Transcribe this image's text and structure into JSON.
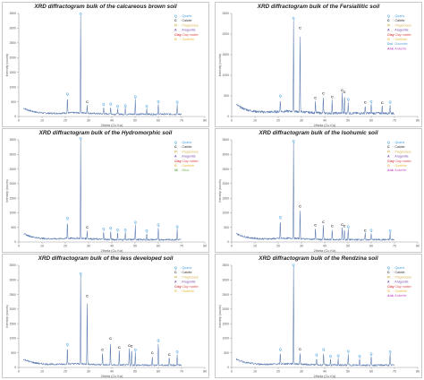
{
  "palette": {
    "trace": "#8fa6c7",
    "trace_dark": "#5b7bb0",
    "axis": "#9a9a9a",
    "title": "#222222",
    "Q": "#4aa3df",
    "C": "#333333",
    "Pl": "#d6b656",
    "A": "#7a4fb0",
    "Clay": "#e05353",
    "G": "#e6b83a",
    "Mi": "#7ab85a",
    "Dol": "#5fa8d3",
    "Ank": "#c458c4"
  },
  "chart_data": [
    {
      "type": "line",
      "title": "XRD diffractogram bulk of  the  calcareous brown soil",
      "xlabel": "2theta (Cu Kα)",
      "ylabel": "Intensity (counts)",
      "xlim": [
        0,
        80
      ],
      "ylim": [
        0,
        3500
      ],
      "xticks": [
        0,
        10,
        20,
        30,
        40,
        50,
        60,
        70,
        80
      ],
      "yticks": [
        0,
        500,
        1000,
        1500,
        2000,
        2500,
        3000,
        3500
      ],
      "legend_position": "top-right",
      "legend": [
        {
          "symbol": "Q",
          "label": "Quartz",
          "color": "#4aa3df"
        },
        {
          "symbol": "C",
          "label": "Calcite",
          "color": "#333333"
        },
        {
          "symbol": "Pl",
          "label": "Plagioclase",
          "color": "#d6b656"
        },
        {
          "symbol": "A",
          "label": "Aragonite",
          "color": "#7a4fb0"
        },
        {
          "symbol": "Clay",
          "label": "Clay matter",
          "color": "#e05353"
        },
        {
          "symbol": "G",
          "label": "Goethite",
          "color": "#e6b83a"
        }
      ],
      "peaks": [
        {
          "x": 20.9,
          "y": 560,
          "label": "Q"
        },
        {
          "x": 26.6,
          "y": 3280,
          "label": "Q"
        },
        {
          "x": 29.4,
          "y": 300,
          "label": "C"
        },
        {
          "x": 36.5,
          "y": 240,
          "label": "Q"
        },
        {
          "x": 39.5,
          "y": 260,
          "label": "Q"
        },
        {
          "x": 42.5,
          "y": 200,
          "label": "Q"
        },
        {
          "x": 45.8,
          "y": 210,
          "label": "Q"
        },
        {
          "x": 50.1,
          "y": 520,
          "label": "Q"
        },
        {
          "x": 55.0,
          "y": 200,
          "label": "Q"
        },
        {
          "x": 60.0,
          "y": 350,
          "label": "Q"
        },
        {
          "x": 68.1,
          "y": 330,
          "label": "Q"
        }
      ]
    },
    {
      "type": "line",
      "title": "XRD diffractogram bulk of  the  Fersiallitic soil",
      "xlabel": "2theta (Cu Kα)",
      "ylabel": "Intensity (counts)",
      "xlim": [
        0,
        80
      ],
      "ylim": [
        0,
        2500
      ],
      "xticks": [
        0,
        10,
        20,
        30,
        40,
        50,
        60,
        70,
        80
      ],
      "yticks": [
        0,
        500,
        1000,
        1500,
        2000,
        2500
      ],
      "legend_position": "top-right",
      "legend": [
        {
          "symbol": "Q",
          "label": "Quartz",
          "color": "#4aa3df"
        },
        {
          "symbol": "C",
          "label": "Calcite",
          "color": "#333333"
        },
        {
          "symbol": "Pl",
          "label": "Plagioclase",
          "color": "#d6b656"
        },
        {
          "symbol": "A",
          "label": "Aragonite",
          "color": "#7a4fb0"
        },
        {
          "symbol": "Clay",
          "label": "Clay matter",
          "color": "#e05353"
        },
        {
          "symbol": "G",
          "label": "Goethite",
          "color": "#e6b83a"
        },
        {
          "symbol": "Dol",
          "label": "Dolomite",
          "color": "#5fa8d3"
        },
        {
          "symbol": "Ank",
          "label": "Ankerite",
          "color": "#c458c4"
        }
      ],
      "peaks": [
        {
          "x": 20.9,
          "y": 320,
          "label": "Q"
        },
        {
          "x": 26.6,
          "y": 2200,
          "label": "Q"
        },
        {
          "x": 29.4,
          "y": 1970,
          "label": "C"
        },
        {
          "x": 36.0,
          "y": 300,
          "label": "C"
        },
        {
          "x": 39.4,
          "y": 420,
          "label": "C"
        },
        {
          "x": 43.2,
          "y": 330,
          "label": "C"
        },
        {
          "x": 47.5,
          "y": 500,
          "label": "C"
        },
        {
          "x": 48.5,
          "y": 450,
          "label": "C"
        },
        {
          "x": 50.1,
          "y": 280,
          "label": "Q"
        },
        {
          "x": 57.4,
          "y": 200,
          "label": "C"
        },
        {
          "x": 60.0,
          "y": 220,
          "label": "Q"
        },
        {
          "x": 64.7,
          "y": 190,
          "label": "C"
        },
        {
          "x": 68.1,
          "y": 210,
          "label": "Q"
        }
      ]
    },
    {
      "type": "line",
      "title": "XRD diffractogram bulk of  the  Hydromorphic soil",
      "xlabel": "2theta (Cu Kα)",
      "ylabel": "Intensity (counts)",
      "xlim": [
        0,
        80
      ],
      "ylim": [
        0,
        3500
      ],
      "xticks": [
        0,
        10,
        20,
        30,
        40,
        50,
        60,
        70,
        80
      ],
      "yticks": [
        0,
        500,
        1000,
        1500,
        2000,
        2500,
        3000,
        3500
      ],
      "legend_position": "top-right",
      "legend": [
        {
          "symbol": "Q",
          "label": "Quartz",
          "color": "#4aa3df"
        },
        {
          "symbol": "C",
          "label": "Calcite",
          "color": "#333333"
        },
        {
          "symbol": "Pl",
          "label": "Plagioclase",
          "color": "#d6b656"
        },
        {
          "symbol": "A",
          "label": "Aragonite",
          "color": "#7a4fb0"
        },
        {
          "symbol": "Clay",
          "label": "Clay matter",
          "color": "#e05353"
        },
        {
          "symbol": "G",
          "label": "Goethite",
          "color": "#e6b83a"
        },
        {
          "symbol": "Mi",
          "label": "Mica",
          "color": "#7ab85a"
        }
      ],
      "peaks": [
        {
          "x": 20.9,
          "y": 620,
          "label": "Q"
        },
        {
          "x": 26.6,
          "y": 3350,
          "label": "Q"
        },
        {
          "x": 29.4,
          "y": 300,
          "label": "C"
        },
        {
          "x": 36.5,
          "y": 280,
          "label": "Q"
        },
        {
          "x": 39.5,
          "y": 310,
          "label": "Q"
        },
        {
          "x": 42.5,
          "y": 250,
          "label": "Q"
        },
        {
          "x": 45.8,
          "y": 260,
          "label": "Q"
        },
        {
          "x": 50.1,
          "y": 520,
          "label": "Q"
        },
        {
          "x": 55.0,
          "y": 230,
          "label": "Q"
        },
        {
          "x": 60.0,
          "y": 420,
          "label": "Q"
        },
        {
          "x": 68.1,
          "y": 360,
          "label": "Q"
        }
      ]
    },
    {
      "type": "line",
      "title": "XRD diffractogram bulk of  the  Isohumic soil",
      "xlabel": "2theta (Cu Kα)",
      "ylabel": "Intensity (counts)",
      "xlim": [
        0,
        80
      ],
      "ylim": [
        0,
        3500
      ],
      "xticks": [
        0,
        10,
        20,
        30,
        40,
        50,
        60,
        70,
        80
      ],
      "yticks": [
        0,
        500,
        1000,
        1500,
        2000,
        2500,
        3000,
        3500
      ],
      "legend_position": "top-right",
      "legend": [
        {
          "symbol": "Q",
          "label": "Quartz",
          "color": "#4aa3df"
        },
        {
          "symbol": "C",
          "label": "Calcite",
          "color": "#333333"
        },
        {
          "symbol": "Pl",
          "label": "Plagioclase",
          "color": "#d6b656"
        },
        {
          "symbol": "A",
          "label": "Aragonite",
          "color": "#7a4fb0"
        },
        {
          "symbol": "Clay",
          "label": "Clay matter",
          "color": "#e05353"
        },
        {
          "symbol": "G",
          "label": "Goethite",
          "color": "#e6b83a"
        },
        {
          "symbol": "Ank",
          "label": "Ankerite",
          "color": "#c458c4"
        }
      ],
      "peaks": [
        {
          "x": 20.9,
          "y": 650,
          "label": "Q"
        },
        {
          "x": 26.6,
          "y": 3250,
          "label": "Q"
        },
        {
          "x": 29.4,
          "y": 1020,
          "label": "C"
        },
        {
          "x": 36.0,
          "y": 400,
          "label": "C"
        },
        {
          "x": 39.4,
          "y": 520,
          "label": "C"
        },
        {
          "x": 43.2,
          "y": 380,
          "label": "C"
        },
        {
          "x": 47.5,
          "y": 420,
          "label": "C"
        },
        {
          "x": 48.5,
          "y": 380,
          "label": "C"
        },
        {
          "x": 50.1,
          "y": 360,
          "label": "Q"
        },
        {
          "x": 57.4,
          "y": 230,
          "label": "C"
        },
        {
          "x": 60.0,
          "y": 250,
          "label": "Q"
        },
        {
          "x": 68.1,
          "y": 230,
          "label": "Q"
        }
      ]
    },
    {
      "type": "line",
      "title": "XRD diffractogram bulk of  the  less developed soil",
      "xlabel": "2theta (Cu Kα)",
      "ylabel": "Intensity (counts)",
      "xlim": [
        0,
        80
      ],
      "ylim": [
        0,
        3500
      ],
      "xticks": [
        0,
        10,
        20,
        30,
        40,
        50,
        60,
        70,
        80
      ],
      "yticks": [
        0,
        500,
        1000,
        1500,
        2000,
        2500,
        3000,
        3500
      ],
      "legend_position": "top-right",
      "legend": [
        {
          "symbol": "Q",
          "label": "Quartz",
          "color": "#4aa3df"
        },
        {
          "symbol": "C",
          "label": "Calcite",
          "color": "#333333"
        },
        {
          "symbol": "Pl",
          "label": "Plagioclase",
          "color": "#d6b656"
        },
        {
          "symbol": "A",
          "label": "Aragonite",
          "color": "#7a4fb0"
        },
        {
          "symbol": "Clay",
          "label": "Clay matter",
          "color": "#e05353"
        },
        {
          "symbol": "G",
          "label": "Goethite",
          "color": "#e6b83a"
        }
      ],
      "peaks": [
        {
          "x": 20.9,
          "y": 580,
          "label": "Q"
        },
        {
          "x": 26.6,
          "y": 3000,
          "label": "Q"
        },
        {
          "x": 29.4,
          "y": 2250,
          "label": "C"
        },
        {
          "x": 36.0,
          "y": 430,
          "label": "C"
        },
        {
          "x": 39.4,
          "y": 820,
          "label": "C"
        },
        {
          "x": 43.2,
          "y": 520,
          "label": "C"
        },
        {
          "x": 47.5,
          "y": 580,
          "label": "C"
        },
        {
          "x": 48.5,
          "y": 560,
          "label": "C"
        },
        {
          "x": 50.1,
          "y": 440,
          "label": "Q"
        },
        {
          "x": 57.4,
          "y": 330,
          "label": "C"
        },
        {
          "x": 60.0,
          "y": 760,
          "label": "Q"
        },
        {
          "x": 64.7,
          "y": 280,
          "label": "C"
        },
        {
          "x": 68.1,
          "y": 380,
          "label": "Q"
        }
      ]
    },
    {
      "type": "line",
      "title": "XRD diffractogram bulk of  the  Rendzina soil",
      "xlabel": "2theta (Cu Kα)",
      "ylabel": "Intensity (counts)",
      "xlim": [
        0,
        80
      ],
      "ylim": [
        0,
        3500
      ],
      "xticks": [
        0,
        10,
        20,
        30,
        40,
        50,
        60,
        70,
        80
      ],
      "yticks": [
        0,
        500,
        1000,
        1500,
        2000,
        2500,
        3000,
        3500
      ],
      "legend_position": "top-right",
      "legend": [
        {
          "symbol": "Q",
          "label": "Quartz",
          "color": "#4aa3df"
        },
        {
          "symbol": "C",
          "label": "Calcite",
          "color": "#333333"
        },
        {
          "symbol": "Pl",
          "label": "Plagioclase",
          "color": "#d6b656"
        },
        {
          "symbol": "A",
          "label": "Aragonite",
          "color": "#7a4fb0"
        },
        {
          "symbol": "Clay",
          "label": "Clay matter",
          "color": "#e05353"
        },
        {
          "symbol": "G",
          "label": "Goethite",
          "color": "#e6b83a"
        },
        {
          "symbol": "Ank",
          "label": "Ankerite",
          "color": "#c458c4"
        }
      ],
      "peaks": [
        {
          "x": 20.9,
          "y": 420,
          "label": "Q"
        },
        {
          "x": 26.6,
          "y": 3300,
          "label": "Q"
        },
        {
          "x": 29.4,
          "y": 420,
          "label": "C"
        },
        {
          "x": 36.5,
          "y": 260,
          "label": "Q"
        },
        {
          "x": 39.5,
          "y": 450,
          "label": "Q"
        },
        {
          "x": 42.5,
          "y": 220,
          "label": "Q"
        },
        {
          "x": 45.8,
          "y": 240,
          "label": "Q"
        },
        {
          "x": 50.1,
          "y": 400,
          "label": "Q"
        },
        {
          "x": 55.0,
          "y": 220,
          "label": "Q"
        },
        {
          "x": 60.0,
          "y": 300,
          "label": "Q"
        },
        {
          "x": 68.1,
          "y": 380,
          "label": "Q"
        }
      ]
    }
  ]
}
